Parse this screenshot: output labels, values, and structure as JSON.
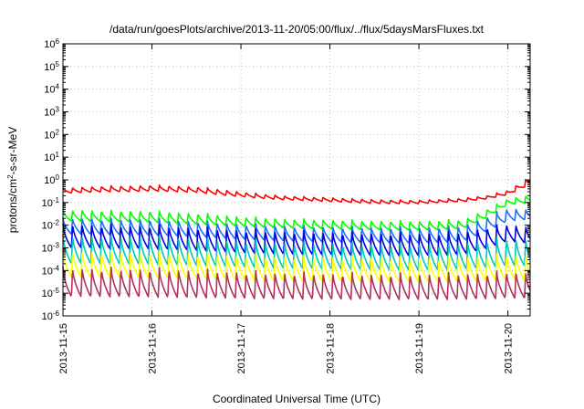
{
  "chart_data": {
    "type": "line",
    "title": "/data/run/goesPlots/archive/2013-11-20/05:00/flux/../flux/5daysMarsFluxes.txt",
    "xlabel": "Coordinated Universal Time (UTC)",
    "ylabel": {
      "pre": "protons/cm",
      "sup": "2",
      "post": "-s-sr-MeV"
    },
    "yscale": "log",
    "ylim": [
      1e-06,
      1000000.0
    ],
    "xlim": [
      "2013-11-15",
      "2013-11-20 06:00"
    ],
    "grid": true,
    "x_ticks": [
      "2013-11-15",
      "2013-11-16",
      "2013-11-17",
      "2013-11-18",
      "2013-11-19",
      "2013-11-20"
    ],
    "y_ticks": [
      {
        "base": "10",
        "exp": "-6",
        "value": 1e-06
      },
      {
        "base": "10",
        "exp": "-5",
        "value": 1e-05
      },
      {
        "base": "10",
        "exp": "-4",
        "value": 0.0001
      },
      {
        "base": "10",
        "exp": "-3",
        "value": 0.001
      },
      {
        "base": "10",
        "exp": "-2",
        "value": 0.01
      },
      {
        "base": "10",
        "exp": "-1",
        "value": 0.1
      },
      {
        "base": "10",
        "exp": "0",
        "value": 1
      },
      {
        "base": "10",
        "exp": "1",
        "value": 10
      },
      {
        "base": "10",
        "exp": "2",
        "value": 100
      },
      {
        "base": "10",
        "exp": "3",
        "value": 1000
      },
      {
        "base": "10",
        "exp": "4",
        "value": 10000
      },
      {
        "base": "10",
        "exp": "5",
        "value": 100000
      },
      {
        "base": "10",
        "exp": "6",
        "value": 1000000
      }
    ],
    "x": [
      "2013-11-15 00:00",
      "2013-11-15 06:00",
      "2013-11-15 12:00",
      "2013-11-15 18:00",
      "2013-11-16 00:00",
      "2013-11-16 06:00",
      "2013-11-16 12:00",
      "2013-11-16 18:00",
      "2013-11-17 00:00",
      "2013-11-17 06:00",
      "2013-11-17 12:00",
      "2013-11-17 18:00",
      "2013-11-18 00:00",
      "2013-11-18 06:00",
      "2013-11-18 12:00",
      "2013-11-18 18:00",
      "2013-11-19 00:00",
      "2013-11-19 06:00",
      "2013-11-19 12:00",
      "2013-11-19 18:00",
      "2013-11-20 00:00",
      "2013-11-20 06:00"
    ],
    "sawtooth_period_hours": 2.6,
    "series": [
      {
        "color": "#ff0000",
        "peak": [
          0.45,
          0.5,
          0.55,
          0.55,
          0.6,
          0.55,
          0.5,
          0.4,
          0.3,
          0.24,
          0.2,
          0.18,
          0.17,
          0.15,
          0.14,
          0.13,
          0.13,
          0.14,
          0.16,
          0.2,
          0.35,
          1.4
        ],
        "trough": [
          0.25,
          0.28,
          0.3,
          0.3,
          0.32,
          0.3,
          0.28,
          0.22,
          0.18,
          0.15,
          0.13,
          0.12,
          0.11,
          0.1,
          0.09,
          0.09,
          0.09,
          0.1,
          0.11,
          0.14,
          0.22,
          0.6
        ]
      },
      {
        "color": "#00ff00",
        "peak": [
          0.05,
          0.05,
          0.045,
          0.045,
          0.045,
          0.04,
          0.035,
          0.03,
          0.025,
          0.022,
          0.02,
          0.019,
          0.018,
          0.017,
          0.016,
          0.016,
          0.016,
          0.017,
          0.018,
          0.05,
          0.15,
          0.22
        ],
        "trough": [
          0.015,
          0.015,
          0.014,
          0.014,
          0.013,
          0.012,
          0.011,
          0.01,
          0.009,
          0.008,
          0.0075,
          0.007,
          0.0068,
          0.0065,
          0.0062,
          0.006,
          0.006,
          0.0062,
          0.007,
          0.02,
          0.08,
          0.1
        ]
      },
      {
        "color": "#1e70ff",
        "peak": [
          0.022,
          0.022,
          0.02,
          0.02,
          0.02,
          0.018,
          0.016,
          0.014,
          0.012,
          0.011,
          0.01,
          0.0095,
          0.009,
          0.0088,
          0.0085,
          0.0085,
          0.0085,
          0.009,
          0.01,
          0.025,
          0.06,
          0.05
        ],
        "trough": [
          0.004,
          0.004,
          0.0037,
          0.0037,
          0.0035,
          0.0033,
          0.003,
          0.0027,
          0.0024,
          0.0022,
          0.002,
          0.0019,
          0.0018,
          0.0017,
          0.0017,
          0.0016,
          0.0016,
          0.0017,
          0.0019,
          0.005,
          0.015,
          0.018
        ]
      },
      {
        "color": "#0000dd",
        "peak": [
          0.012,
          0.012,
          0.011,
          0.011,
          0.011,
          0.01,
          0.009,
          0.008,
          0.007,
          0.0065,
          0.006,
          0.0058,
          0.0055,
          0.0053,
          0.0052,
          0.005,
          0.005,
          0.0052,
          0.0058,
          0.009,
          0.012,
          0.009
        ],
        "trough": [
          0.001,
          0.001,
          0.0009,
          0.0009,
          0.00088,
          0.00082,
          0.00075,
          0.00068,
          0.0006,
          0.00056,
          0.00052,
          0.0005,
          0.00048,
          0.00046,
          0.00045,
          0.00044,
          0.00044,
          0.00046,
          0.0005,
          0.0009,
          0.002,
          0.0015
        ]
      },
      {
        "color": "#00c8b4",
        "peak": [
          0.004,
          0.004,
          0.0037,
          0.0037,
          0.0036,
          0.0034,
          0.003,
          0.0027,
          0.0024,
          0.0022,
          0.002,
          0.0019,
          0.0018,
          0.0018,
          0.0017,
          0.0017,
          0.0017,
          0.0018,
          0.0019,
          0.0025,
          0.003,
          0.0025
        ],
        "trough": [
          0.0002,
          0.0002,
          0.00019,
          0.00019,
          0.00018,
          0.00017,
          0.00016,
          0.00015,
          0.00014,
          0.00013,
          0.00012,
          0.00012,
          0.00011,
          0.00011,
          0.000105,
          0.0001,
          0.0001,
          0.000105,
          0.00011,
          0.00013,
          0.00016,
          0.00015
        ]
      },
      {
        "color": "#ffff00",
        "peak": [
          0.0008,
          0.0008,
          0.00075,
          0.00075,
          0.00072,
          0.0007,
          0.00065,
          0.0006,
          0.00055,
          0.0005,
          0.00048,
          0.00046,
          0.00045,
          0.00044,
          0.00043,
          0.00042,
          0.00042,
          0.00043,
          0.00045,
          0.0005,
          0.0006,
          0.0005
        ],
        "trough": [
          5e-05,
          5e-05,
          4.8e-05,
          4.8e-05,
          4.6e-05,
          4.5e-05,
          4.3e-05,
          4e-05,
          3.8e-05,
          3.6e-05,
          3.5e-05,
          3.4e-05,
          3.3e-05,
          3.3e-05,
          3.2e-05,
          3.2e-05,
          3.2e-05,
          3.2e-05,
          3.3e-05,
          3.5e-05,
          4e-05,
          3.5e-05
        ]
      },
      {
        "color": "#b03060",
        "peak": [
          0.00015,
          0.00015,
          0.00014,
          0.00014,
          0.00014,
          0.00013,
          0.00012,
          0.00011,
          0.0001,
          9.5e-05,
          9e-05,
          8.8e-05,
          8.5e-05,
          8.3e-05,
          8.2e-05,
          8e-05,
          8e-05,
          8.2e-05,
          8.5e-05,
          9e-05,
          0.0001,
          9e-05
        ],
        "trough": [
          7e-06,
          7e-06,
          6.8e-06,
          6.8e-06,
          6.6e-06,
          6.4e-06,
          6.2e-06,
          6e-06,
          5.8e-06,
          5.6e-06,
          5.5e-06,
          5.4e-06,
          5.3e-06,
          5.3e-06,
          5.2e-06,
          5.2e-06,
          5.2e-06,
          5.2e-06,
          5.3e-06,
          5.5e-06,
          6e-06,
          5.8e-06
        ]
      }
    ]
  }
}
